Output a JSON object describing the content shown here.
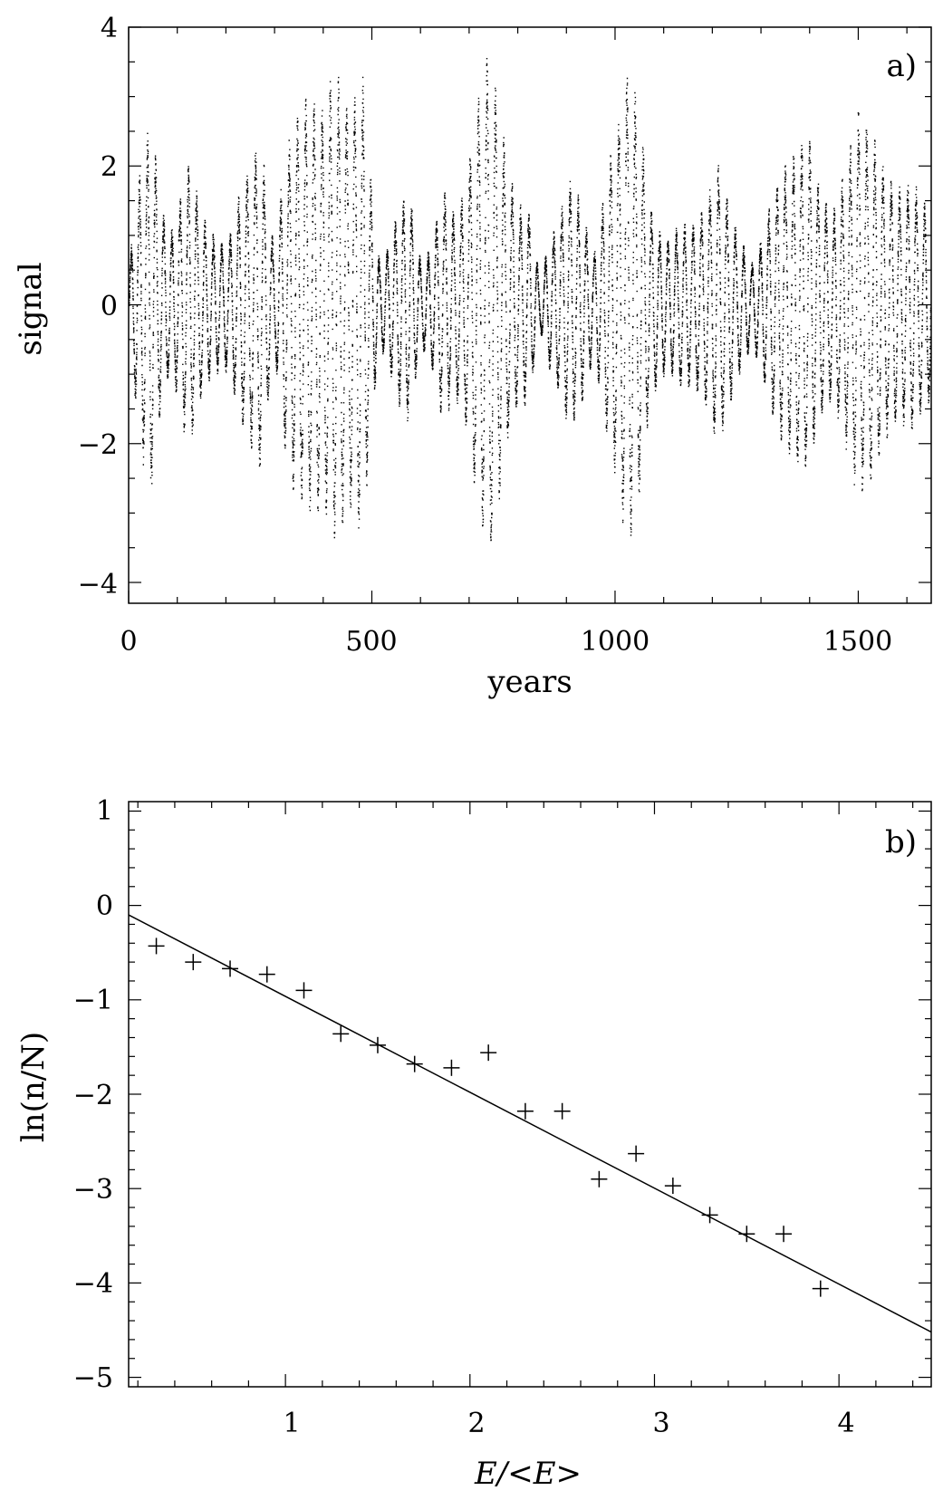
{
  "chart_data": [
    {
      "type": "scatter",
      "panel_label": "a)",
      "title": "",
      "xlabel": "years",
      "ylabel": "signal",
      "xlim": [
        0,
        1650
      ],
      "ylim": [
        -4.3,
        4
      ],
      "x_ticks": [
        "0",
        "500",
        "1000",
        "1500"
      ],
      "y_ticks": [
        "4",
        "2",
        "0",
        "−2",
        "−4"
      ],
      "grid": false,
      "point_count_approx": 16500,
      "envelope": [
        [
          0,
          0.5
        ],
        [
          10,
          1.0
        ],
        [
          25,
          1.8
        ],
        [
          45,
          2.3
        ],
        [
          65,
          1.2
        ],
        [
          80,
          0.9
        ],
        [
          95,
          1.0
        ],
        [
          110,
          1.5
        ],
        [
          125,
          1.7
        ],
        [
          145,
          1.2
        ],
        [
          165,
          0.9
        ],
        [
          185,
          0.8
        ],
        [
          205,
          0.8
        ],
        [
          225,
          1.3
        ],
        [
          250,
          1.7
        ],
        [
          270,
          2.1
        ],
        [
          285,
          1.2
        ],
        [
          300,
          0.6
        ],
        [
          315,
          1.6
        ],
        [
          335,
          2.2
        ],
        [
          365,
          2.5
        ],
        [
          395,
          2.5
        ],
        [
          425,
          2.8
        ],
        [
          455,
          2.4
        ],
        [
          480,
          2.8
        ],
        [
          500,
          1.3
        ],
        [
          515,
          0.5
        ],
        [
          530,
          0.7
        ],
        [
          555,
          1.2
        ],
        [
          575,
          1.4
        ],
        [
          600,
          0.5
        ],
        [
          620,
          0.7
        ],
        [
          645,
          1.4
        ],
        [
          670,
          1.1
        ],
        [
          690,
          1.4
        ],
        [
          715,
          2.4
        ],
        [
          740,
          3.1
        ],
        [
          760,
          2.4
        ],
        [
          780,
          1.6
        ],
        [
          800,
          1.2
        ],
        [
          820,
          1.2
        ],
        [
          845,
          0.3
        ],
        [
          860,
          0.7
        ],
        [
          880,
          1.0
        ],
        [
          905,
          1.5
        ],
        [
          925,
          1.3
        ],
        [
          955,
          0.6
        ],
        [
          975,
          1.3
        ],
        [
          995,
          2.0
        ],
        [
          1025,
          2.9
        ],
        [
          1050,
          2.3
        ],
        [
          1070,
          1.2
        ],
        [
          1090,
          0.9
        ],
        [
          1110,
          0.8
        ],
        [
          1135,
          1.0
        ],
        [
          1160,
          1.0
        ],
        [
          1185,
          1.2
        ],
        [
          1210,
          1.7
        ],
        [
          1230,
          1.3
        ],
        [
          1250,
          0.9
        ],
        [
          1280,
          0.5
        ],
        [
          1300,
          0.8
        ],
        [
          1320,
          1.3
        ],
        [
          1345,
          1.7
        ],
        [
          1370,
          1.9
        ],
        [
          1395,
          2.1
        ],
        [
          1420,
          1.4
        ],
        [
          1445,
          1.1
        ],
        [
          1470,
          1.6
        ],
        [
          1500,
          2.4
        ],
        [
          1525,
          2.1
        ],
        [
          1555,
          1.6
        ],
        [
          1580,
          1.4
        ],
        [
          1610,
          1.5
        ],
        [
          1640,
          1.2
        ]
      ]
    },
    {
      "type": "scatter",
      "panel_label": "b)",
      "title": "",
      "xlabel": "E/<E>",
      "ylabel": "ln(n/N)",
      "xlim": [
        0.15,
        4.5
      ],
      "ylim": [
        -5.1,
        1.1
      ],
      "x_ticks": [
        "1",
        "2",
        "3",
        "4"
      ],
      "y_ticks": [
        "1",
        "0",
        "−1",
        "−2",
        "−3",
        "−4",
        "−5"
      ],
      "grid": false,
      "points": [
        {
          "x": 0.3,
          "y": -0.43
        },
        {
          "x": 0.5,
          "y": -0.6
        },
        {
          "x": 0.7,
          "y": -0.67
        },
        {
          "x": 0.9,
          "y": -0.73
        },
        {
          "x": 1.1,
          "y": -0.9
        },
        {
          "x": 1.3,
          "y": -1.36
        },
        {
          "x": 1.5,
          "y": -1.48
        },
        {
          "x": 1.7,
          "y": -1.68
        },
        {
          "x": 1.9,
          "y": -1.72
        },
        {
          "x": 2.1,
          "y": -1.56
        },
        {
          "x": 2.3,
          "y": -2.18
        },
        {
          "x": 2.5,
          "y": -2.18
        },
        {
          "x": 2.7,
          "y": -2.9
        },
        {
          "x": 2.9,
          "y": -2.63
        },
        {
          "x": 3.1,
          "y": -2.97
        },
        {
          "x": 3.3,
          "y": -3.28
        },
        {
          "x": 3.5,
          "y": -3.48
        },
        {
          "x": 3.7,
          "y": -3.48
        },
        {
          "x": 3.9,
          "y": -4.06
        }
      ],
      "fit_line": {
        "x": [
          0.15,
          4.5
        ],
        "y": [
          -0.1,
          -4.52
        ]
      }
    }
  ]
}
